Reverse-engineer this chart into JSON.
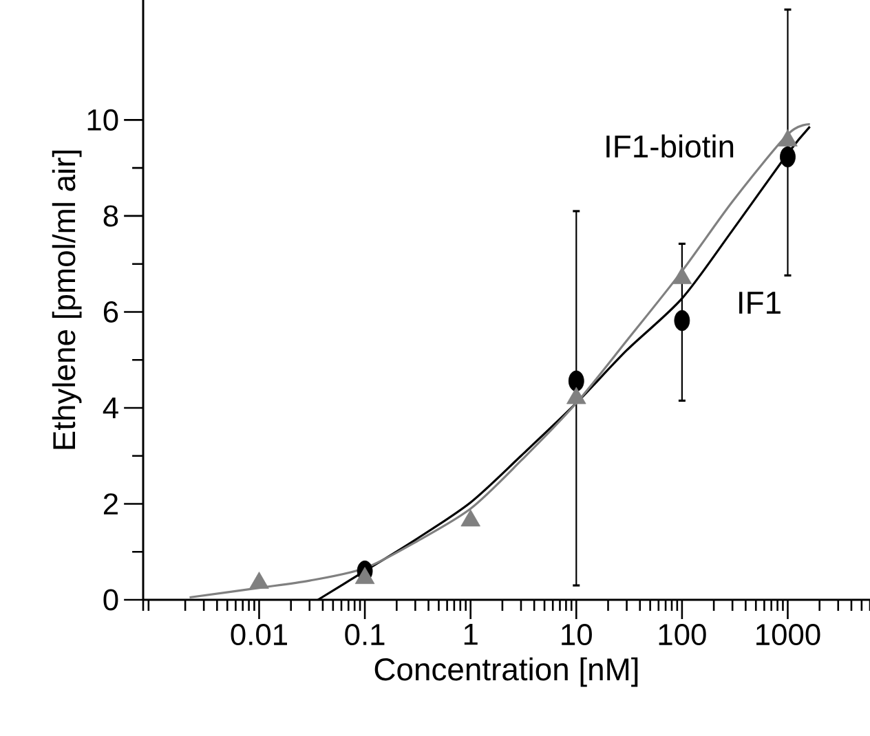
{
  "chart_data": {
    "type": "scatter",
    "xlabel": "Concentration [nM]",
    "ylabel": "Ethylene [pmol/ml air]",
    "log": "x",
    "xlim": [
      0.0008,
      6000
    ],
    "xticks": [
      0.01,
      0.1,
      1,
      10,
      100,
      1000
    ],
    "ylim": [
      0,
      12.5
    ],
    "yticks": [
      0,
      2,
      4,
      6,
      8,
      10
    ],
    "grid": false,
    "series": [
      {
        "type": "line",
        "color": "#000000",
        "marker": "none",
        "x": [
          0.036,
          0.1,
          0.3,
          1,
          3,
          10,
          30,
          100,
          300,
          1000,
          1620
        ],
        "values": [
          0,
          0.6,
          1.25,
          2.03,
          3.0,
          4.1,
          5.2,
          6.28,
          7.7,
          9.3,
          9.86
        ]
      },
      {
        "type": "line",
        "color": "#808080",
        "marker": "none",
        "x": [
          0.0022,
          0.01,
          0.03,
          0.1,
          0.3,
          1,
          3,
          10,
          30,
          100,
          300,
          1000,
          1620
        ],
        "values": [
          0.05,
          0.25,
          0.4,
          0.66,
          1.2,
          1.9,
          2.9,
          4.1,
          5.4,
          6.85,
          8.3,
          9.7,
          9.91
        ]
      },
      {
        "name": "IF1",
        "color": "#000000",
        "marker": "circle",
        "x": [
          0.1,
          1,
          10,
          100,
          1000
        ],
        "values": [
          0.6,
          null,
          4.56,
          5.82,
          9.23
        ],
        "errors": [
          null,
          null,
          [
            0.3,
            8.1
          ],
          [
            4.15,
            7.42
          ],
          [
            6.76,
            12.3
          ]
        ]
      },
      {
        "name": "IF1-biotin",
        "color": "#808080",
        "marker": "triangle",
        "x": [
          0.01,
          0.1,
          1,
          10,
          100,
          1000
        ],
        "values": [
          0.35,
          0.45,
          1.65,
          4.2,
          6.7,
          9.57
        ]
      }
    ]
  }
}
